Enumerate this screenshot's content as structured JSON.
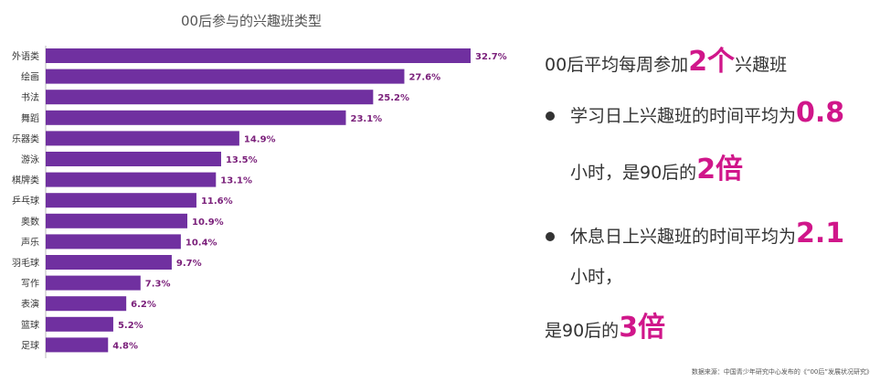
{
  "chart_data": {
    "type": "bar",
    "orientation": "horizontal",
    "title": "00后参与的兴趣班类型",
    "categories": [
      "外语类",
      "绘画",
      "书法",
      "舞蹈",
      "乐器类",
      "游泳",
      "棋牌类",
      "乒乓球",
      "奥数",
      "声乐",
      "羽毛球",
      "写作",
      "表演",
      "篮球",
      "足球"
    ],
    "values": [
      32.7,
      27.6,
      25.2,
      23.1,
      14.9,
      13.5,
      13.1,
      11.6,
      10.9,
      10.4,
      9.7,
      7.3,
      6.2,
      5.2,
      4.8
    ],
    "value_labels": [
      "32.7%",
      "27.6%",
      "25.2%",
      "23.1%",
      "14.9%",
      "13.5%",
      "13.1%",
      "11.6%",
      "10.9%",
      "10.4%",
      "9.7%",
      "7.3%",
      "6.2%",
      "5.2%",
      "4.8%"
    ],
    "bar_color": "#7030a0",
    "xlim": [
      0,
      32.7
    ],
    "grid": false
  },
  "panel": {
    "headline_pre": "00后平均每周参加",
    "headline_num": "2个",
    "headline_post": "兴趣班",
    "weekday_pre": "学习日上兴趣班的时间平均为",
    "weekday_num": "0.8",
    "weekday_line2_pre": "小时，是90后的",
    "weekday_line2_num": "2倍",
    "rest_pre": "休息日上兴趣班的时间平均为",
    "rest_num": "2.1",
    "rest_line2": "小时，",
    "rest_line3_pre": "是90后的",
    "rest_line3_num": "3倍"
  },
  "source": "数据来源：中国青少年研究中心发布的《“00后”发展状况研究》",
  "colors": {
    "accent": "#d0168a",
    "bar": "#7030a0"
  }
}
